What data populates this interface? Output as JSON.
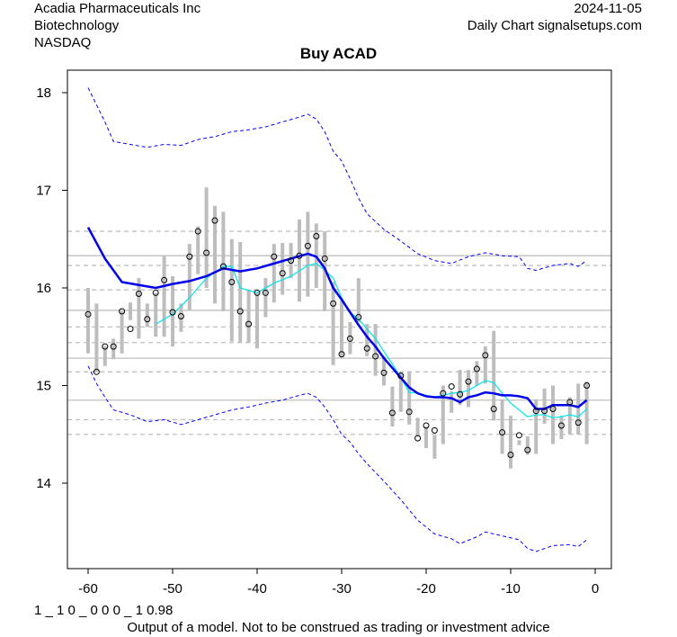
{
  "header": {
    "company": "Acadia Pharmaceuticals Inc",
    "sector": "Biotechnology",
    "exchange": "NASDAQ",
    "date": "2024-11-05",
    "source": "Daily Chart signalsetups.com"
  },
  "footer": {
    "code": "1 _ 1 0 _ 0 0 0 _ 1 0.98",
    "disclaimer": "Output of a model. Not to be construed as trading or investment advice"
  },
  "chart_data": {
    "type": "line",
    "title": "Buy ACAD",
    "xlim": [
      -63,
      2
    ],
    "ylim": [
      13.1,
      18.25
    ],
    "xticks": [
      -60,
      -50,
      -40,
      -30,
      -20,
      -10,
      0
    ],
    "yticks": [
      14,
      15,
      16,
      17,
      18
    ],
    "colors": {
      "bar": "#bdbdbd",
      "ma": "#0000ee",
      "ma_fast": "#00e5ee",
      "band": "#0000ff",
      "grid": "#c0c0c0"
    },
    "hlines_solid": [
      16.33,
      15.77,
      15.28,
      14.85
    ],
    "hlines_dashed": [
      16.58,
      16.23,
      15.98,
      15.6,
      15.44,
      15.14,
      14.65,
      14.5
    ],
    "x": [
      -60,
      -59,
      -58,
      -57,
      -56,
      -55,
      -54,
      -53,
      -52,
      -51,
      -50,
      -49,
      -48,
      -47,
      -46,
      -45,
      -44,
      -43,
      -42,
      -41,
      -40,
      -39,
      -38,
      -37,
      -36,
      -35,
      -34,
      -33,
      -32,
      -31,
      -30,
      -29,
      -28,
      -27,
      -26,
      -25,
      -24,
      -23,
      -22,
      -21,
      -20,
      -19,
      -18,
      -17,
      -16,
      -15,
      -14,
      -13,
      -12,
      -11,
      -10,
      -9,
      -8,
      -7,
      -6,
      -5,
      -4,
      -3,
      -2,
      -1
    ],
    "close": [
      15.73,
      15.14,
      15.4,
      15.4,
      15.76,
      15.58,
      15.94,
      15.68,
      15.95,
      16.08,
      15.75,
      15.71,
      16.32,
      16.58,
      16.36,
      16.69,
      16.22,
      16.06,
      15.76,
      15.63,
      15.95,
      15.95,
      16.32,
      16.15,
      16.28,
      16.33,
      16.43,
      16.53,
      16.3,
      15.84,
      15.32,
      15.48,
      15.7,
      15.38,
      15.3,
      15.13,
      14.72,
      15.1,
      14.73,
      14.46,
      14.59,
      14.54,
      14.92,
      14.99,
      14.91,
      15.04,
      15.17,
      15.31,
      14.76,
      14.52,
      14.29,
      14.49,
      14.34,
      14.74,
      14.74,
      14.76,
      14.59,
      14.83,
      14.62,
      15.0
    ],
    "high": [
      16.0,
      15.84,
      15.4,
      15.48,
      15.76,
      15.85,
      16.1,
      15.84,
      15.95,
      16.33,
      16.12,
      15.84,
      16.45,
      16.63,
      17.03,
      16.84,
      16.78,
      16.5,
      16.47,
      15.98,
      15.95,
      16.1,
      16.45,
      16.46,
      16.46,
      16.7,
      16.78,
      16.66,
      16.58,
      16.06,
      15.87,
      15.65,
      16.1,
      15.63,
      15.63,
      15.3,
      14.99,
      15.14,
      15.14,
      14.67,
      14.58,
      14.49,
      15.0,
      14.94,
      15.16,
      15.16,
      15.25,
      15.4,
      15.56,
      14.86,
      14.69,
      14.44,
      14.48,
      14.86,
      14.97,
      15.0,
      14.69,
      14.88,
      15.02,
      15.04
    ],
    "low": [
      15.33,
      15.14,
      15.2,
      15.27,
      15.33,
      15.67,
      15.48,
      15.6,
      15.5,
      15.5,
      15.4,
      15.55,
      15.77,
      16.14,
      16.0,
      15.84,
      15.76,
      15.45,
      15.44,
      15.44,
      15.38,
      15.7,
      15.85,
      15.93,
      16.1,
      15.86,
      15.91,
      16.0,
      15.76,
      15.21,
      15.3,
      15.32,
      15.65,
      15.3,
      15.1,
      15.0,
      14.58,
      14.73,
      14.6,
      14.48,
      14.36,
      14.25,
      14.4,
      14.72,
      14.8,
      14.78,
      15.0,
      15.02,
      14.64,
      14.3,
      14.15,
      14.39,
      14.29,
      14.3,
      14.61,
      14.4,
      14.45,
      14.5,
      14.5,
      14.4
    ],
    "ma": [
      [
        -60,
        16.62
      ],
      [
        -58,
        16.3
      ],
      [
        -56,
        16.06
      ],
      [
        -54,
        16.03
      ],
      [
        -52,
        16.0
      ],
      [
        -50,
        16.04
      ],
      [
        -48,
        16.07
      ],
      [
        -46,
        16.12
      ],
      [
        -44,
        16.2
      ],
      [
        -42,
        16.17
      ],
      [
        -40,
        16.2
      ],
      [
        -38,
        16.25
      ],
      [
        -36,
        16.3
      ],
      [
        -34,
        16.35
      ],
      [
        -33,
        16.32
      ],
      [
        -32,
        16.2
      ],
      [
        -31,
        16.0
      ],
      [
        -30,
        15.88
      ],
      [
        -29,
        15.75
      ],
      [
        -28,
        15.62
      ],
      [
        -27,
        15.5
      ],
      [
        -26,
        15.4
      ],
      [
        -25,
        15.28
      ],
      [
        -24,
        15.18
      ],
      [
        -23,
        15.08
      ],
      [
        -22,
        14.98
      ],
      [
        -21,
        14.92
      ],
      [
        -20,
        14.89
      ],
      [
        -19,
        14.88
      ],
      [
        -18,
        14.88
      ],
      [
        -17,
        14.87
      ],
      [
        -16,
        14.83
      ],
      [
        -15,
        14.88
      ],
      [
        -14,
        14.9
      ],
      [
        -13,
        14.93
      ],
      [
        -12,
        14.92
      ],
      [
        -11,
        14.9
      ],
      [
        -10,
        14.9
      ],
      [
        -9,
        14.89
      ],
      [
        -8,
        14.87
      ],
      [
        -7,
        14.76
      ],
      [
        -6,
        14.76
      ],
      [
        -5,
        14.8
      ],
      [
        -4,
        14.8
      ],
      [
        -3,
        14.8
      ],
      [
        -2,
        14.78
      ],
      [
        -1,
        14.85
      ]
    ],
    "ma_fast": [
      [
        -52,
        15.63
      ],
      [
        -50,
        15.73
      ],
      [
        -48,
        15.9
      ],
      [
        -46,
        16.1
      ],
      [
        -44,
        16.22
      ],
      [
        -43,
        16.22
      ],
      [
        -42,
        16.0
      ],
      [
        -40,
        15.95
      ],
      [
        -38,
        16.05
      ],
      [
        -36,
        16.12
      ],
      [
        -34,
        16.23
      ],
      [
        -33,
        16.25
      ],
      [
        -32,
        16.18
      ],
      [
        -31,
        16.1
      ],
      [
        -30,
        15.9
      ],
      [
        -29,
        15.75
      ],
      [
        -28,
        15.68
      ],
      [
        -27,
        15.58
      ],
      [
        -26,
        15.48
      ],
      [
        -25,
        15.35
      ],
      [
        -24,
        15.22
      ],
      [
        -23,
        15.08
      ],
      [
        -22,
        14.93
      ],
      [
        -21,
        14.92
      ],
      [
        -20,
        14.9
      ],
      [
        -19,
        14.88
      ],
      [
        -18,
        14.9
      ],
      [
        -17,
        14.92
      ],
      [
        -16,
        14.93
      ],
      [
        -15,
        14.95
      ],
      [
        -14,
        15.0
      ],
      [
        -13,
        15.05
      ],
      [
        -12,
        15.03
      ],
      [
        -11,
        14.92
      ],
      [
        -10,
        14.82
      ],
      [
        -9,
        14.75
      ],
      [
        -8,
        14.68
      ],
      [
        -7,
        14.7
      ],
      [
        -6,
        14.7
      ],
      [
        -5,
        14.67
      ],
      [
        -4,
        14.68
      ],
      [
        -3,
        14.7
      ],
      [
        -2,
        14.68
      ],
      [
        -1,
        14.76
      ]
    ],
    "band_upper": [
      [
        -60,
        18.05
      ],
      [
        -58,
        17.7
      ],
      [
        -57,
        17.5
      ],
      [
        -55,
        17.47
      ],
      [
        -53,
        17.44
      ],
      [
        -51,
        17.47
      ],
      [
        -49,
        17.46
      ],
      [
        -47,
        17.52
      ],
      [
        -45,
        17.55
      ],
      [
        -43,
        17.6
      ],
      [
        -41,
        17.62
      ],
      [
        -39,
        17.65
      ],
      [
        -37,
        17.7
      ],
      [
        -35,
        17.75
      ],
      [
        -34,
        17.78
      ],
      [
        -33,
        17.73
      ],
      [
        -32,
        17.6
      ],
      [
        -31,
        17.4
      ],
      [
        -30,
        17.3
      ],
      [
        -29,
        17.12
      ],
      [
        -28,
        16.92
      ],
      [
        -27,
        16.76
      ],
      [
        -26,
        16.68
      ],
      [
        -25,
        16.6
      ],
      [
        -23,
        16.48
      ],
      [
        -21,
        16.35
      ],
      [
        -19,
        16.28
      ],
      [
        -17,
        16.25
      ],
      [
        -15,
        16.32
      ],
      [
        -13,
        16.36
      ],
      [
        -11,
        16.33
      ],
      [
        -9,
        16.32
      ],
      [
        -8,
        16.2
      ],
      [
        -7,
        16.18
      ],
      [
        -5,
        16.23
      ],
      [
        -3,
        16.25
      ],
      [
        -2,
        16.22
      ],
      [
        -1,
        16.28
      ]
    ],
    "band_lower": [
      [
        -60,
        15.2
      ],
      [
        -59,
        15.02
      ],
      [
        -58,
        14.88
      ],
      [
        -57,
        14.75
      ],
      [
        -55,
        14.7
      ],
      [
        -53,
        14.63
      ],
      [
        -51,
        14.65
      ],
      [
        -49,
        14.6
      ],
      [
        -47,
        14.65
      ],
      [
        -45,
        14.7
      ],
      [
        -43,
        14.75
      ],
      [
        -41,
        14.78
      ],
      [
        -39,
        14.82
      ],
      [
        -37,
        14.85
      ],
      [
        -35,
        14.9
      ],
      [
        -34,
        14.92
      ],
      [
        -33,
        14.88
      ],
      [
        -32,
        14.78
      ],
      [
        -31,
        14.65
      ],
      [
        -30,
        14.5
      ],
      [
        -29,
        14.42
      ],
      [
        -28,
        14.3
      ],
      [
        -27,
        14.2
      ],
      [
        -25,
        14.02
      ],
      [
        -23,
        13.83
      ],
      [
        -21,
        13.62
      ],
      [
        -19,
        13.48
      ],
      [
        -17,
        13.43
      ],
      [
        -16,
        13.38
      ],
      [
        -14,
        13.45
      ],
      [
        -13,
        13.5
      ],
      [
        -11,
        13.46
      ],
      [
        -9,
        13.42
      ],
      [
        -8,
        13.33
      ],
      [
        -7,
        13.3
      ],
      [
        -5,
        13.36
      ],
      [
        -3,
        13.37
      ],
      [
        -2,
        13.35
      ],
      [
        -1,
        13.42
      ]
    ]
  }
}
